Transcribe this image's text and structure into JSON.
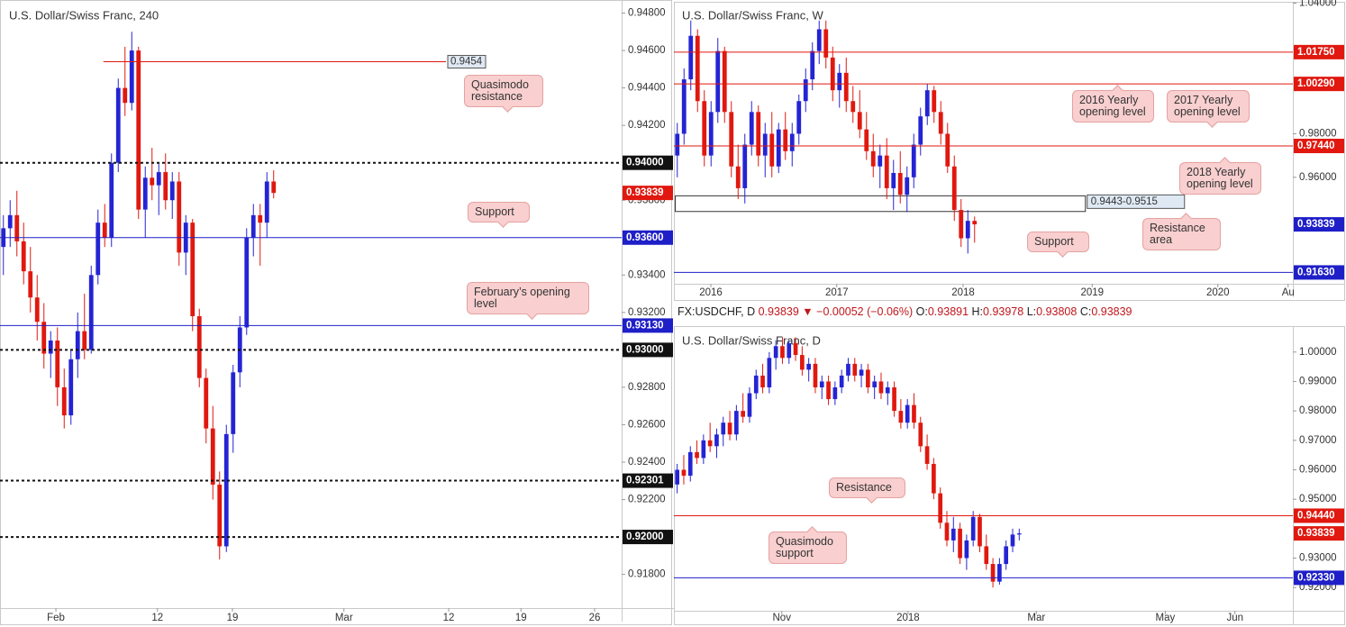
{
  "ticker": {
    "symbol": "FX:USDCHF, D",
    "last": "0.93839",
    "change": "−0.00052 (−0.06%)",
    "ohlc": [
      {
        "label": "O:",
        "value": "0.93891"
      },
      {
        "label": "H:",
        "value": "0.93978"
      },
      {
        "label": "L:",
        "value": "0.93808"
      },
      {
        "label": "C:",
        "value": "0.93839"
      }
    ]
  },
  "chart_data": [
    {
      "type": "candlestick",
      "title": "U.S. Dollar/Swiss Franc, 240",
      "up_color": "#2424d4",
      "down_color": "#e0180f",
      "xlim": [
        -0.5,
        91.5
      ],
      "ylim": [
        0.9162,
        0.9487
      ],
      "xticks": [
        {
          "value": 7.77,
          "label": "Feb"
        },
        {
          "value": 22.8,
          "label": "12"
        },
        {
          "value": 33.9,
          "label": "19"
        },
        {
          "value": 50.4,
          "label": "Mar"
        },
        {
          "value": 65.9,
          "label": "12"
        },
        {
          "value": 76.6,
          "label": "19"
        },
        {
          "value": 87.5,
          "label": "26"
        }
      ],
      "yticks": [
        {
          "value": 0.948,
          "label": "0.94800"
        },
        {
          "value": 0.946,
          "label": "0.94600"
        },
        {
          "value": 0.944,
          "label": "0.94400"
        },
        {
          "value": 0.942,
          "label": "0.94200"
        },
        {
          "value": 0.938,
          "label": "0.93800"
        },
        {
          "value": 0.934,
          "label": "0.93400"
        },
        {
          "value": 0.932,
          "label": "0.93200"
        },
        {
          "value": 0.928,
          "label": "0.92800"
        },
        {
          "value": 0.926,
          "label": "0.92600"
        },
        {
          "value": 0.924,
          "label": "0.92400"
        },
        {
          "value": 0.922,
          "label": "0.92200"
        },
        {
          "value": 0.918,
          "label": "0.91800"
        }
      ],
      "levels": [
        {
          "value": 0.94,
          "label": "0.94000",
          "color": "#111111",
          "line": "dashed"
        },
        {
          "value": 0.93839,
          "label": "0.93839",
          "color": "#e0180f",
          "line": "none"
        },
        {
          "value": 0.936,
          "label": "0.93600",
          "color": "#1f1fc8",
          "line": "solid"
        },
        {
          "value": 0.9313,
          "label": "0.93130",
          "color": "#1f1fc8",
          "line": "solid"
        },
        {
          "value": 0.93,
          "label": "0.93000",
          "color": "#111111",
          "line": "dashed"
        },
        {
          "value": 0.92301,
          "label": "0.92301",
          "color": "#111111",
          "line": "dashed"
        },
        {
          "value": 0.92,
          "label": "0.92000",
          "color": "#111111",
          "line": "dashed"
        }
      ],
      "segments": [
        {
          "value": 0.9454,
          "label": "0.9454",
          "x": [
            14.8,
            65.5
          ],
          "color": "#e0180f"
        }
      ],
      "annotations": [
        "Quasimodo resistance",
        "Support",
        "February’s opening level"
      ],
      "open": [
        0.9355,
        0.9365,
        0.9372,
        0.9358,
        0.9342,
        0.9328,
        0.9315,
        0.9298,
        0.9305,
        0.928,
        0.9265,
        0.9295,
        0.931,
        0.93,
        0.934,
        0.9368,
        0.936,
        0.94,
        0.944,
        0.9432,
        0.946,
        0.9375,
        0.9392,
        0.9388,
        0.9395,
        0.938,
        0.939,
        0.9352,
        0.9368,
        0.9318,
        0.9285,
        0.9258,
        0.9228,
        0.9195,
        0.9255,
        0.9288,
        0.9312,
        0.936,
        0.9372,
        0.9368,
        0.939
      ],
      "high": [
        0.9372,
        0.938,
        0.9385,
        0.9368,
        0.9355,
        0.934,
        0.9325,
        0.931,
        0.9312,
        0.929,
        0.93,
        0.932,
        0.933,
        0.9345,
        0.9375,
        0.9378,
        0.9405,
        0.9445,
        0.9462,
        0.947,
        0.9462,
        0.9398,
        0.9408,
        0.94,
        0.9405,
        0.9395,
        0.9395,
        0.9372,
        0.937,
        0.9322,
        0.929,
        0.927,
        0.9235,
        0.926,
        0.9292,
        0.9318,
        0.9365,
        0.9378,
        0.9378,
        0.9395,
        0.9396
      ],
      "low": [
        0.934,
        0.9355,
        0.935,
        0.9335,
        0.932,
        0.9305,
        0.929,
        0.9285,
        0.927,
        0.9258,
        0.926,
        0.9285,
        0.9295,
        0.9298,
        0.9335,
        0.9355,
        0.9355,
        0.9395,
        0.9425,
        0.9428,
        0.937,
        0.936,
        0.938,
        0.9372,
        0.9375,
        0.937,
        0.9345,
        0.934,
        0.931,
        0.928,
        0.925,
        0.922,
        0.9188,
        0.9192,
        0.9245,
        0.928,
        0.9308,
        0.935,
        0.9345,
        0.936,
        0.9381
      ],
      "close": [
        0.9365,
        0.9372,
        0.9358,
        0.9342,
        0.9328,
        0.9315,
        0.9298,
        0.9305,
        0.928,
        0.9265,
        0.9295,
        0.931,
        0.93,
        0.934,
        0.9368,
        0.936,
        0.94,
        0.944,
        0.9432,
        0.946,
        0.9375,
        0.9392,
        0.9388,
        0.9395,
        0.938,
        0.939,
        0.9352,
        0.9368,
        0.9318,
        0.9285,
        0.9258,
        0.9228,
        0.9195,
        0.9255,
        0.9288,
        0.9312,
        0.936,
        0.9372,
        0.9368,
        0.939,
        0.93839
      ]
    },
    {
      "type": "candlestick",
      "title": "U.S. Dollar/Swiss Franc, W",
      "up_color": "#2424d4",
      "down_color": "#e0180f",
      "xlim": [
        -0.5,
        91.1
      ],
      "ylim": [
        0.9111,
        1.0402
      ],
      "xticks": [
        {
          "value": 4.97,
          "label": "2016"
        },
        {
          "value": 23.6,
          "label": "2017"
        },
        {
          "value": 42.3,
          "label": "2018"
        },
        {
          "value": 61.4,
          "label": "2019"
        },
        {
          "value": 80.0,
          "label": "2020"
        },
        {
          "value": 90.4,
          "label": "Au"
        }
      ],
      "yticks": [
        {
          "value": 1.04,
          "label": "1.04000"
        },
        {
          "value": 0.98,
          "label": "0.98000"
        },
        {
          "value": 0.96,
          "label": "0.96000"
        }
      ],
      "levels": [
        {
          "value": 1.0175,
          "label": "1.01750",
          "color": "#e0180f",
          "line": "solid"
        },
        {
          "value": 1.0029,
          "label": "1.00290",
          "color": "#e0180f",
          "line": "solid"
        },
        {
          "value": 0.9744,
          "label": "0.97440",
          "color": "#e0180f",
          "line": "solid"
        },
        {
          "value": 0.93839,
          "label": "0.93839",
          "color": "#1f1fc8",
          "line": "none"
        },
        {
          "value": 0.9163,
          "label": "0.91630",
          "color": "#1f1fc8",
          "line": "solid"
        }
      ],
      "zones": [
        {
          "low": 0.9443,
          "high": 0.9515,
          "label": "0.9443-0.9515",
          "x": [
            -0.3,
            60.4
          ]
        }
      ],
      "annotations": [
        "2016 Yearly opening level",
        "2017 Yearly opening level",
        "2018 Yearly opening level",
        "Resistance area",
        "Support"
      ],
      "open": [
        0.97,
        0.98,
        1.005,
        1.025,
        0.995,
        0.97,
        0.99,
        1.018,
        0.99,
        0.965,
        0.955,
        0.975,
        0.99,
        0.97,
        0.98,
        0.965,
        0.982,
        0.972,
        0.98,
        0.995,
        1.005,
        1.018,
        1.028,
        1.015,
        1.0,
        1.008,
        0.995,
        0.99,
        0.982,
        0.972,
        0.965,
        0.97,
        0.955,
        0.962,
        0.952,
        0.96,
        0.975,
        0.988,
        1.0,
        0.99,
        0.98,
        0.965,
        0.945,
        0.932,
        0.94
      ],
      "high": [
        0.985,
        1.01,
        1.032,
        1.028,
        1.0,
        0.995,
        1.024,
        1.02,
        0.995,
        0.975,
        0.98,
        0.995,
        0.993,
        0.985,
        0.99,
        0.985,
        0.99,
        0.985,
        0.998,
        1.01,
        1.022,
        1.032,
        1.032,
        1.02,
        1.012,
        1.015,
        1.002,
        1.0,
        0.99,
        0.98,
        0.975,
        0.978,
        0.968,
        0.972,
        0.965,
        0.98,
        0.992,
        1.003,
        1.002,
        0.995,
        0.985,
        0.97,
        0.95,
        0.945,
        0.942
      ],
      "low": [
        0.96,
        0.975,
        1.0,
        0.99,
        0.965,
        0.965,
        0.985,
        0.985,
        0.96,
        0.95,
        0.948,
        0.97,
        0.965,
        0.96,
        0.96,
        0.962,
        0.968,
        0.965,
        0.975,
        0.99,
        1.0,
        1.012,
        1.01,
        0.995,
        0.992,
        0.99,
        0.985,
        0.978,
        0.968,
        0.96,
        0.955,
        0.95,
        0.945,
        0.948,
        0.944,
        0.955,
        0.97,
        0.984,
        0.985,
        0.975,
        0.962,
        0.94,
        0.928,
        0.925,
        0.93
      ],
      "close": [
        0.98,
        1.005,
        1.025,
        0.995,
        0.97,
        0.99,
        1.018,
        0.99,
        0.965,
        0.955,
        0.975,
        0.99,
        0.97,
        0.98,
        0.965,
        0.982,
        0.972,
        0.98,
        0.995,
        1.005,
        1.018,
        1.028,
        1.015,
        1.0,
        1.008,
        0.995,
        0.99,
        0.982,
        0.972,
        0.965,
        0.97,
        0.955,
        0.962,
        0.952,
        0.96,
        0.975,
        0.988,
        1.0,
        0.99,
        0.98,
        0.965,
        0.945,
        0.932,
        0.94,
        0.93839
      ]
    },
    {
      "type": "candlestick",
      "title": "U.S. Dollar/Swiss Franc, D",
      "up_color": "#2424d4",
      "down_color": "#e0180f",
      "xlim": [
        -0.5,
        93.6
      ],
      "ylim": [
        0.9121,
        1.0085
      ],
      "xticks": [
        {
          "value": 15.9,
          "label": "Nov"
        },
        {
          "value": 35.1,
          "label": "2018"
        },
        {
          "value": 54.6,
          "label": "Mar"
        },
        {
          "value": 74.2,
          "label": "May"
        },
        {
          "value": 84.8,
          "label": "Jun"
        }
      ],
      "yticks": [
        {
          "value": 1.0,
          "label": "1.00000"
        },
        {
          "value": 0.99,
          "label": "0.99000"
        },
        {
          "value": 0.98,
          "label": "0.98000"
        },
        {
          "value": 0.97,
          "label": "0.97000"
        },
        {
          "value": 0.96,
          "label": "0.96000"
        },
        {
          "value": 0.95,
          "label": "0.95000"
        },
        {
          "value": 0.93,
          "label": "0.93000"
        },
        {
          "value": 0.92,
          "label": "0.92000"
        }
      ],
      "levels": [
        {
          "value": 0.9444,
          "label": "0.94440",
          "color": "#e0180f",
          "line": "solid"
        },
        {
          "value": 0.93839,
          "label": "0.93839",
          "color": "#e0180f",
          "line": "none"
        },
        {
          "value": 0.9233,
          "label": "0.92330",
          "color": "#1f1fc8",
          "line": "solid"
        }
      ],
      "annotations": [
        "Resistance",
        "Quasimodo support"
      ],
      "open": [
        0.955,
        0.96,
        0.958,
        0.966,
        0.964,
        0.97,
        0.968,
        0.972,
        0.976,
        0.972,
        0.98,
        0.978,
        0.986,
        0.992,
        0.988,
        0.998,
        1.002,
        0.998,
        1.003,
        0.999,
        0.994,
        0.996,
        0.988,
        0.99,
        0.984,
        0.988,
        0.992,
        0.996,
        0.992,
        0.994,
        0.988,
        0.99,
        0.986,
        0.988,
        0.98,
        0.976,
        0.982,
        0.976,
        0.968,
        0.962,
        0.952,
        0.942,
        0.936,
        0.94,
        0.93,
        0.936,
        0.944,
        0.934,
        0.928,
        0.922,
        0.928,
        0.934,
        0.938
      ],
      "high": [
        0.962,
        0.965,
        0.968,
        0.97,
        0.972,
        0.976,
        0.974,
        0.978,
        0.98,
        0.982,
        0.986,
        0.988,
        0.994,
        0.996,
        1.0,
        1.004,
        1.005,
        1.004,
        1.005,
        1.002,
        0.998,
        0.998,
        0.992,
        0.992,
        0.99,
        0.994,
        0.998,
        0.998,
        0.996,
        0.996,
        0.992,
        0.993,
        0.99,
        0.99,
        0.984,
        0.984,
        0.986,
        0.978,
        0.972,
        0.964,
        0.954,
        0.946,
        0.944,
        0.942,
        0.938,
        0.946,
        0.945,
        0.938,
        0.93,
        0.93,
        0.936,
        0.94,
        0.94
      ],
      "low": [
        0.952,
        0.955,
        0.956,
        0.962,
        0.962,
        0.966,
        0.964,
        0.968,
        0.97,
        0.97,
        0.976,
        0.976,
        0.984,
        0.986,
        0.986,
        0.994,
        0.996,
        0.996,
        0.997,
        0.992,
        0.99,
        0.986,
        0.984,
        0.982,
        0.982,
        0.986,
        0.99,
        0.99,
        0.988,
        0.986,
        0.984,
        0.984,
        0.982,
        0.978,
        0.974,
        0.974,
        0.974,
        0.966,
        0.96,
        0.95,
        0.94,
        0.934,
        0.932,
        0.928,
        0.926,
        0.934,
        0.932,
        0.926,
        0.92,
        0.921,
        0.926,
        0.932,
        0.936
      ],
      "close": [
        0.96,
        0.958,
        0.966,
        0.964,
        0.97,
        0.968,
        0.972,
        0.976,
        0.972,
        0.98,
        0.978,
        0.986,
        0.992,
        0.988,
        0.998,
        1.002,
        0.998,
        1.003,
        0.999,
        0.994,
        0.996,
        0.988,
        0.99,
        0.984,
        0.988,
        0.992,
        0.996,
        0.992,
        0.994,
        0.988,
        0.99,
        0.986,
        0.988,
        0.98,
        0.976,
        0.982,
        0.976,
        0.968,
        0.962,
        0.952,
        0.942,
        0.936,
        0.94,
        0.93,
        0.936,
        0.944,
        0.934,
        0.928,
        0.922,
        0.928,
        0.934,
        0.938,
        0.93839
      ]
    }
  ]
}
